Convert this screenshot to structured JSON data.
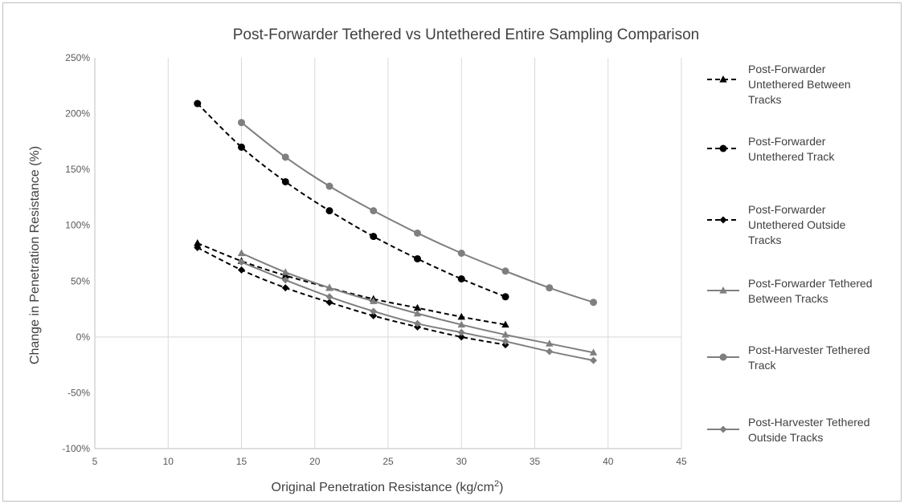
{
  "chart_data": {
    "type": "line",
    "title": "Post-Forwarder Tethered vs Untethered Entire Sampling Comparison",
    "xlabel": "Original Penetration Resistance (kg/cm",
    "xlabel_sup": "2",
    "xlabel_end": ")",
    "ylabel": "Change in Penetration Resistance (%)",
    "xlim": [
      5,
      45
    ],
    "ylim": [
      -100,
      250
    ],
    "xticks": [
      5,
      10,
      15,
      20,
      25,
      30,
      35,
      40,
      45
    ],
    "yticks": [
      -100,
      -50,
      0,
      50,
      100,
      150,
      200,
      250
    ],
    "yticklabels": [
      "-100%",
      "-50%",
      "0%",
      "50%",
      "100%",
      "150%",
      "200%",
      "250%"
    ],
    "grid": "vertical",
    "legend_position": "right",
    "series": [
      {
        "name": "Post-Forwarder Untethered Between Tracks",
        "legend_lines": [
          "Post-Forwarder",
          "Untethered Between",
          "Tracks"
        ],
        "color": "#000000",
        "dashed": true,
        "marker": "triangle",
        "x": [
          12,
          15,
          18,
          21,
          24,
          27,
          30,
          33
        ],
        "y": [
          84,
          68,
          55,
          44,
          34,
          26,
          18,
          11
        ]
      },
      {
        "name": "Post-Forwarder Untethered Track",
        "legend_lines": [
          "Post-Forwarder",
          "Untethered Track"
        ],
        "color": "#000000",
        "dashed": true,
        "marker": "circle",
        "x": [
          12,
          15,
          18,
          21,
          24,
          27,
          30,
          33
        ],
        "y": [
          209,
          170,
          139,
          113,
          90,
          70,
          52,
          36
        ]
      },
      {
        "name": "Post-Forwarder Untethered Outside Tracks",
        "legend_lines": [
          "Post-Forwarder",
          "Untethered Outside",
          "Tracks"
        ],
        "color": "#000000",
        "dashed": true,
        "marker": "diamond",
        "x": [
          12,
          15,
          18,
          21,
          24,
          27,
          30,
          33
        ],
        "y": [
          80,
          60,
          44,
          31,
          19,
          9,
          0,
          -7
        ]
      },
      {
        "name": "Post-Forwarder Tethered Between Tracks",
        "legend_lines": [
          "Post-Forwarder Tethered",
          "Between Tracks"
        ],
        "color": "#7f7f7f",
        "dashed": false,
        "marker": "triangle",
        "x": [
          15,
          18,
          21,
          24,
          27,
          30,
          33,
          36,
          39
        ],
        "y": [
          75,
          58,
          44,
          32,
          21,
          11,
          2,
          -6,
          -14
        ]
      },
      {
        "name": "Post-Harvester Tethered Track",
        "legend_lines": [
          "Post-Harvester Tethered",
          "Track"
        ],
        "color": "#7f7f7f",
        "dashed": false,
        "marker": "circle",
        "x": [
          15,
          18,
          21,
          24,
          27,
          30,
          33,
          36,
          39
        ],
        "y": [
          192,
          161,
          135,
          113,
          93,
          75,
          59,
          44,
          31
        ]
      },
      {
        "name": "Post-Harvester Tethered Outside Tracks",
        "legend_lines": [
          "Post-Harvester Tethered",
          "Outside Tracks"
        ],
        "color": "#7f7f7f",
        "dashed": false,
        "marker": "diamond",
        "x": [
          15,
          18,
          21,
          24,
          27,
          30,
          33,
          36,
          39
        ],
        "y": [
          67,
          51,
          36,
          23,
          12,
          4,
          -4,
          -13,
          -21
        ]
      }
    ]
  }
}
